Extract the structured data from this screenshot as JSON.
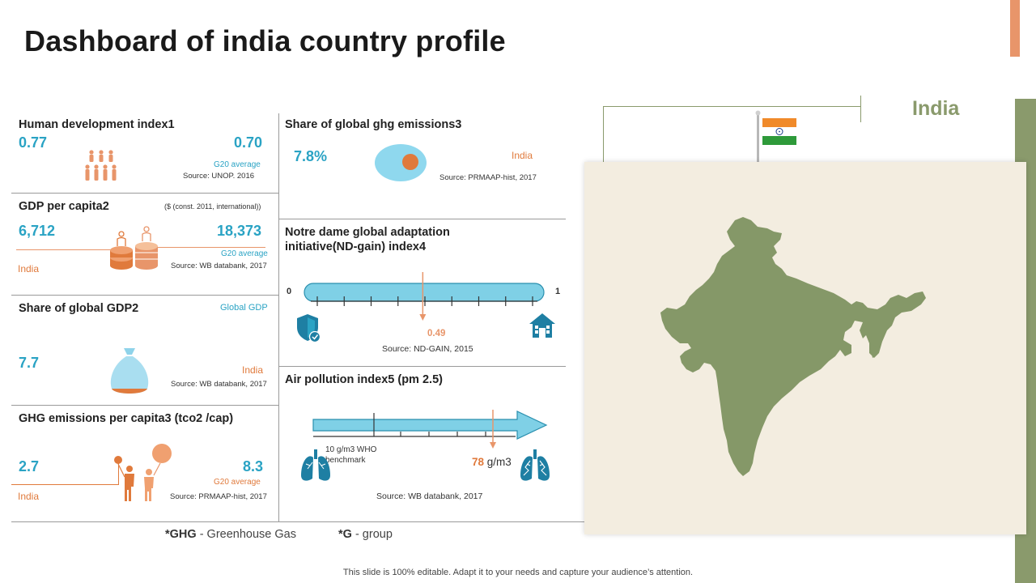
{
  "title": "Dashboard of india country profile",
  "country": "India",
  "hdi": {
    "title": "Human development index1",
    "india_value": "0.77",
    "g20_value": "0.70",
    "g20_label": "G20 average",
    "source": "Source: UNOP.  2016"
  },
  "gdp_per_capita": {
    "title": "GDP per capita2",
    "unit": "($ (const. 2011, international))",
    "india_value": "6,712",
    "g20_value": "18,373",
    "g20_label": "G20 average",
    "india_label": "India",
    "source": "Source: WB databank, 2017"
  },
  "share_gdp": {
    "title": "Share of global GDP2",
    "global_label": "Global GDP",
    "value": "7.7",
    "india_label": "India",
    "source": "Source: WB databank, 2017"
  },
  "ghg_per_capita": {
    "title": "GHG emissions per capita3 (tco2 /cap)",
    "india_value": "2.7",
    "g20_value": "8.3",
    "g20_label": "G20 average",
    "india_label": "India",
    "source": "Source: PRMAAP-hist, 2017"
  },
  "share_ghg": {
    "title": "Share of global ghg emissions3",
    "value": "7.8%",
    "india_label": "India",
    "source": "Source: PRMAAP-hist, 2017"
  },
  "nd_gain": {
    "title_line1": "Notre dame global adaptation",
    "title_line2": "initiative(ND-gain) index4",
    "min_label": "0",
    "max_label": "1",
    "value": 0.49,
    "value_label": "0.49",
    "source": "Source: ND-GAIN,  2015"
  },
  "air_pollution": {
    "title": "Air pollution index5 (pm 2.5)",
    "who_label": "10 g/m3  WHO benchmark",
    "india_value": "78",
    "india_unit": " g/m3",
    "source": "Source: WB databank, 2017"
  },
  "footnotes": {
    "ghg_abbr": "*GHG",
    "ghg_text": " - Greenhouse  Gas",
    "g_abbr": "*G",
    "g_text": " - group"
  },
  "bottom_note": "This slide is 100% editable. Adapt it to your needs and capture your audience’s attention.",
  "colors": {
    "teal": "#2aa3c4",
    "light_teal": "#7fd0e6",
    "orange": "#e07a3c",
    "peach": "#e8956a",
    "olive": "#8a9a6c",
    "map_bg": "#f3ede0"
  }
}
